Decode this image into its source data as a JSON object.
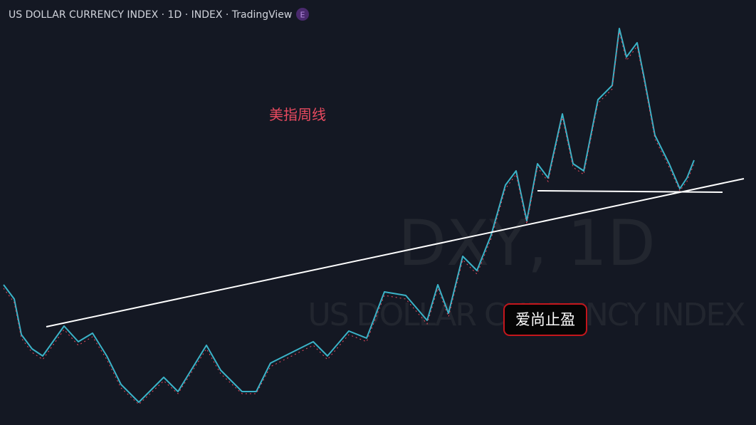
{
  "header": {
    "title": "US DOLLAR CURRENCY INDEX · 1D · INDEX · TradingView",
    "badge": "E"
  },
  "watermark": {
    "symbol": "DXY, 1D",
    "name": "US DOLLAR CURRENCY INDEX"
  },
  "annotations": {
    "note": "美指周线",
    "label": "爱尚止盈"
  }
}
